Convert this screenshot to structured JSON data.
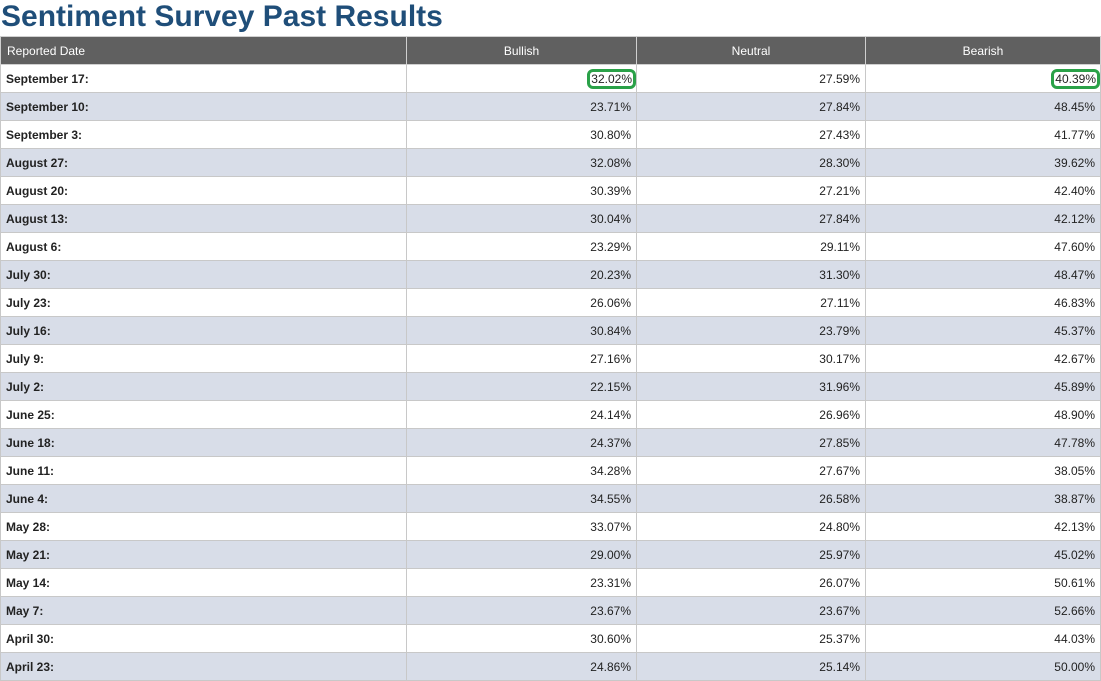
{
  "page": {
    "title": "Sentiment Survey Past Results"
  },
  "table": {
    "headers": [
      "Reported Date",
      "Bullish",
      "Neutral",
      "Bearish"
    ],
    "rows": [
      {
        "date": "September 17:",
        "bullish": "32.02%",
        "neutral": "27.59%",
        "bearish": "40.39%",
        "highlight_bullish": true,
        "highlight_bearish": true
      },
      {
        "date": "September 10:",
        "bullish": "23.71%",
        "neutral": "27.84%",
        "bearish": "48.45%"
      },
      {
        "date": "September 3:",
        "bullish": "30.80%",
        "neutral": "27.43%",
        "bearish": "41.77%"
      },
      {
        "date": "August 27:",
        "bullish": "32.08%",
        "neutral": "28.30%",
        "bearish": "39.62%"
      },
      {
        "date": "August 20:",
        "bullish": "30.39%",
        "neutral": "27.21%",
        "bearish": "42.40%"
      },
      {
        "date": "August 13:",
        "bullish": "30.04%",
        "neutral": "27.84%",
        "bearish": "42.12%"
      },
      {
        "date": "August 6:",
        "bullish": "23.29%",
        "neutral": "29.11%",
        "bearish": "47.60%"
      },
      {
        "date": "July 30:",
        "bullish": "20.23%",
        "neutral": "31.30%",
        "bearish": "48.47%"
      },
      {
        "date": "July 23:",
        "bullish": "26.06%",
        "neutral": "27.11%",
        "bearish": "46.83%"
      },
      {
        "date": "July 16:",
        "bullish": "30.84%",
        "neutral": "23.79%",
        "bearish": "45.37%"
      },
      {
        "date": "July 9:",
        "bullish": "27.16%",
        "neutral": "30.17%",
        "bearish": "42.67%"
      },
      {
        "date": "July 2:",
        "bullish": "22.15%",
        "neutral": "31.96%",
        "bearish": "45.89%"
      },
      {
        "date": "June 25:",
        "bullish": "24.14%",
        "neutral": "26.96%",
        "bearish": "48.90%"
      },
      {
        "date": "June 18:",
        "bullish": "24.37%",
        "neutral": "27.85%",
        "bearish": "47.78%"
      },
      {
        "date": "June 11:",
        "bullish": "34.28%",
        "neutral": "27.67%",
        "bearish": "38.05%"
      },
      {
        "date": "June 4:",
        "bullish": "34.55%",
        "neutral": "26.58%",
        "bearish": "38.87%"
      },
      {
        "date": "May 28:",
        "bullish": "33.07%",
        "neutral": "24.80%",
        "bearish": "42.13%"
      },
      {
        "date": "May 21:",
        "bullish": "29.00%",
        "neutral": "25.97%",
        "bearish": "45.02%"
      },
      {
        "date": "May 14:",
        "bullish": "23.31%",
        "neutral": "26.07%",
        "bearish": "50.61%"
      },
      {
        "date": "May 7:",
        "bullish": "23.67%",
        "neutral": "23.67%",
        "bearish": "52.66%"
      },
      {
        "date": "April 30:",
        "bullish": "30.60%",
        "neutral": "25.37%",
        "bearish": "44.03%"
      },
      {
        "date": "April 23:",
        "bullish": "24.86%",
        "neutral": "25.14%",
        "bearish": "50.00%"
      }
    ]
  },
  "colors": {
    "title": "#1f4e79",
    "header_bg": "#606060",
    "alt_row_bg": "#d8dde8",
    "highlight_outline": "#2aa148"
  }
}
